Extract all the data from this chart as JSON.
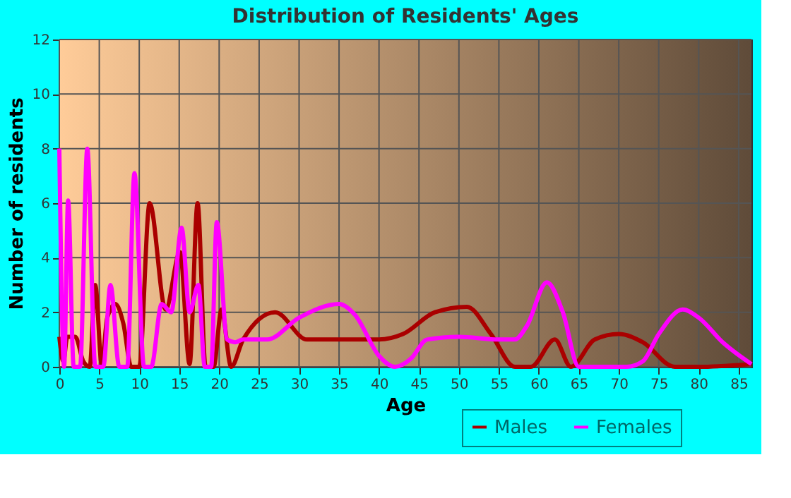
{
  "chart_data": {
    "type": "line",
    "title": "Distribution of Residents' Ages",
    "xlabel": "Age",
    "ylabel": "Number of residents",
    "xlim": [
      0,
      86.6
    ],
    "xticks": [
      0,
      5,
      10,
      15,
      20,
      25,
      30,
      35,
      40,
      45,
      50,
      55,
      60,
      65,
      70,
      75,
      80,
      85
    ],
    "ylim": [
      0,
      12
    ],
    "yticks": [
      0,
      2,
      4,
      6,
      8,
      10,
      12
    ],
    "grid": true,
    "legend": "bottom",
    "marker": "none",
    "line_style": "solid",
    "series": [
      {
        "name": "Males",
        "color": "#aa0000",
        "x": [
          0,
          0.5,
          1,
          2,
          3,
          3.8,
          4.5,
          5.3,
          6,
          7,
          8,
          9,
          10,
          11.3,
          13.3,
          15.1,
          16.3,
          17.3,
          18.3,
          19.3,
          20.3,
          21.5,
          23,
          27,
          31,
          35,
          40,
          43,
          47,
          51,
          54,
          57,
          59,
          62,
          64,
          67,
          70,
          73,
          77,
          80,
          86.6
        ],
        "values": [
          1.1,
          0.2,
          1.1,
          1.1,
          0.2,
          0,
          3,
          0.1,
          1.8,
          2.3,
          1.6,
          0,
          0,
          6,
          2.1,
          4.2,
          0.1,
          6,
          0,
          0,
          2.1,
          0,
          1,
          2,
          1,
          1,
          1,
          1.2,
          2,
          2.2,
          1.2,
          0,
          0,
          1,
          0,
          1,
          1.2,
          0.9,
          0,
          0,
          0.1
        ]
      },
      {
        "name": "Females",
        "color": "#ff00ff",
        "x": [
          0,
          0.6,
          1.1,
          1.8,
          2.6,
          3.5,
          4.5,
          5.5,
          6.4,
          7.5,
          8.5,
          9.4,
          10.6,
          11.5,
          12.8,
          14,
          15.3,
          16.3,
          17.4,
          18.2,
          19,
          19.7,
          21,
          22,
          23,
          26,
          30,
          35,
          37,
          40,
          42,
          44,
          46,
          50,
          55,
          57,
          58.5,
          61,
          63,
          65,
          68,
          71,
          73,
          75,
          78,
          80,
          83,
          86.6
        ],
        "values": [
          8,
          0,
          6.1,
          0,
          0,
          8,
          0,
          0,
          3,
          0,
          0,
          7.1,
          0,
          0,
          2.3,
          2,
          5.1,
          2,
          3,
          0,
          0,
          5.3,
          1,
          0.9,
          1,
          1,
          1.8,
          2.3,
          1.9,
          0.4,
          0,
          0.3,
          1,
          1.1,
          1,
          1,
          1.5,
          3.1,
          2,
          0,
          0,
          0,
          0.2,
          1.2,
          2.1,
          1.8,
          0.9,
          0.1
        ]
      }
    ]
  }
}
